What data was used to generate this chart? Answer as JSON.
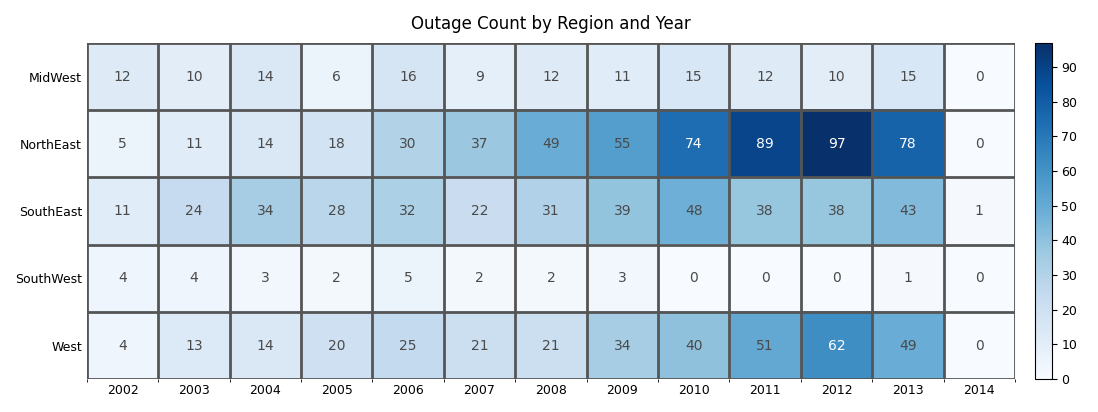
{
  "title": "Outage Count by Region and Year",
  "regions": [
    "MidWest",
    "NorthEast",
    "SouthEast",
    "SouthWest",
    "West"
  ],
  "years": [
    2002,
    2003,
    2004,
    2005,
    2006,
    2007,
    2008,
    2009,
    2010,
    2011,
    2012,
    2013,
    2014
  ],
  "values": [
    [
      12,
      10,
      14,
      6,
      16,
      9,
      12,
      11,
      15,
      12,
      10,
      15,
      0
    ],
    [
      5,
      11,
      14,
      18,
      30,
      37,
      49,
      55,
      74,
      89,
      97,
      78,
      0
    ],
    [
      11,
      24,
      34,
      28,
      32,
      22,
      31,
      39,
      48,
      38,
      38,
      43,
      1
    ],
    [
      4,
      4,
      3,
      2,
      5,
      2,
      2,
      3,
      0,
      0,
      0,
      1,
      0
    ],
    [
      4,
      13,
      14,
      20,
      25,
      21,
      21,
      34,
      40,
      51,
      62,
      49,
      0
    ]
  ],
  "cmap": "Blues",
  "vmin": 0,
  "vmax": 97,
  "colorbar_ticks": [
    0,
    10,
    20,
    30,
    40,
    50,
    60,
    70,
    80,
    90
  ],
  "text_threshold": 60,
  "dark_text_color": "#4a4a4a",
  "light_text_color": "#ffffff",
  "cell_linewidth": 2.0,
  "cell_linecolor": "#555555",
  "background_color": "#ffffff",
  "title_fontsize": 12,
  "tick_fontsize": 9,
  "annot_fontsize": 10
}
